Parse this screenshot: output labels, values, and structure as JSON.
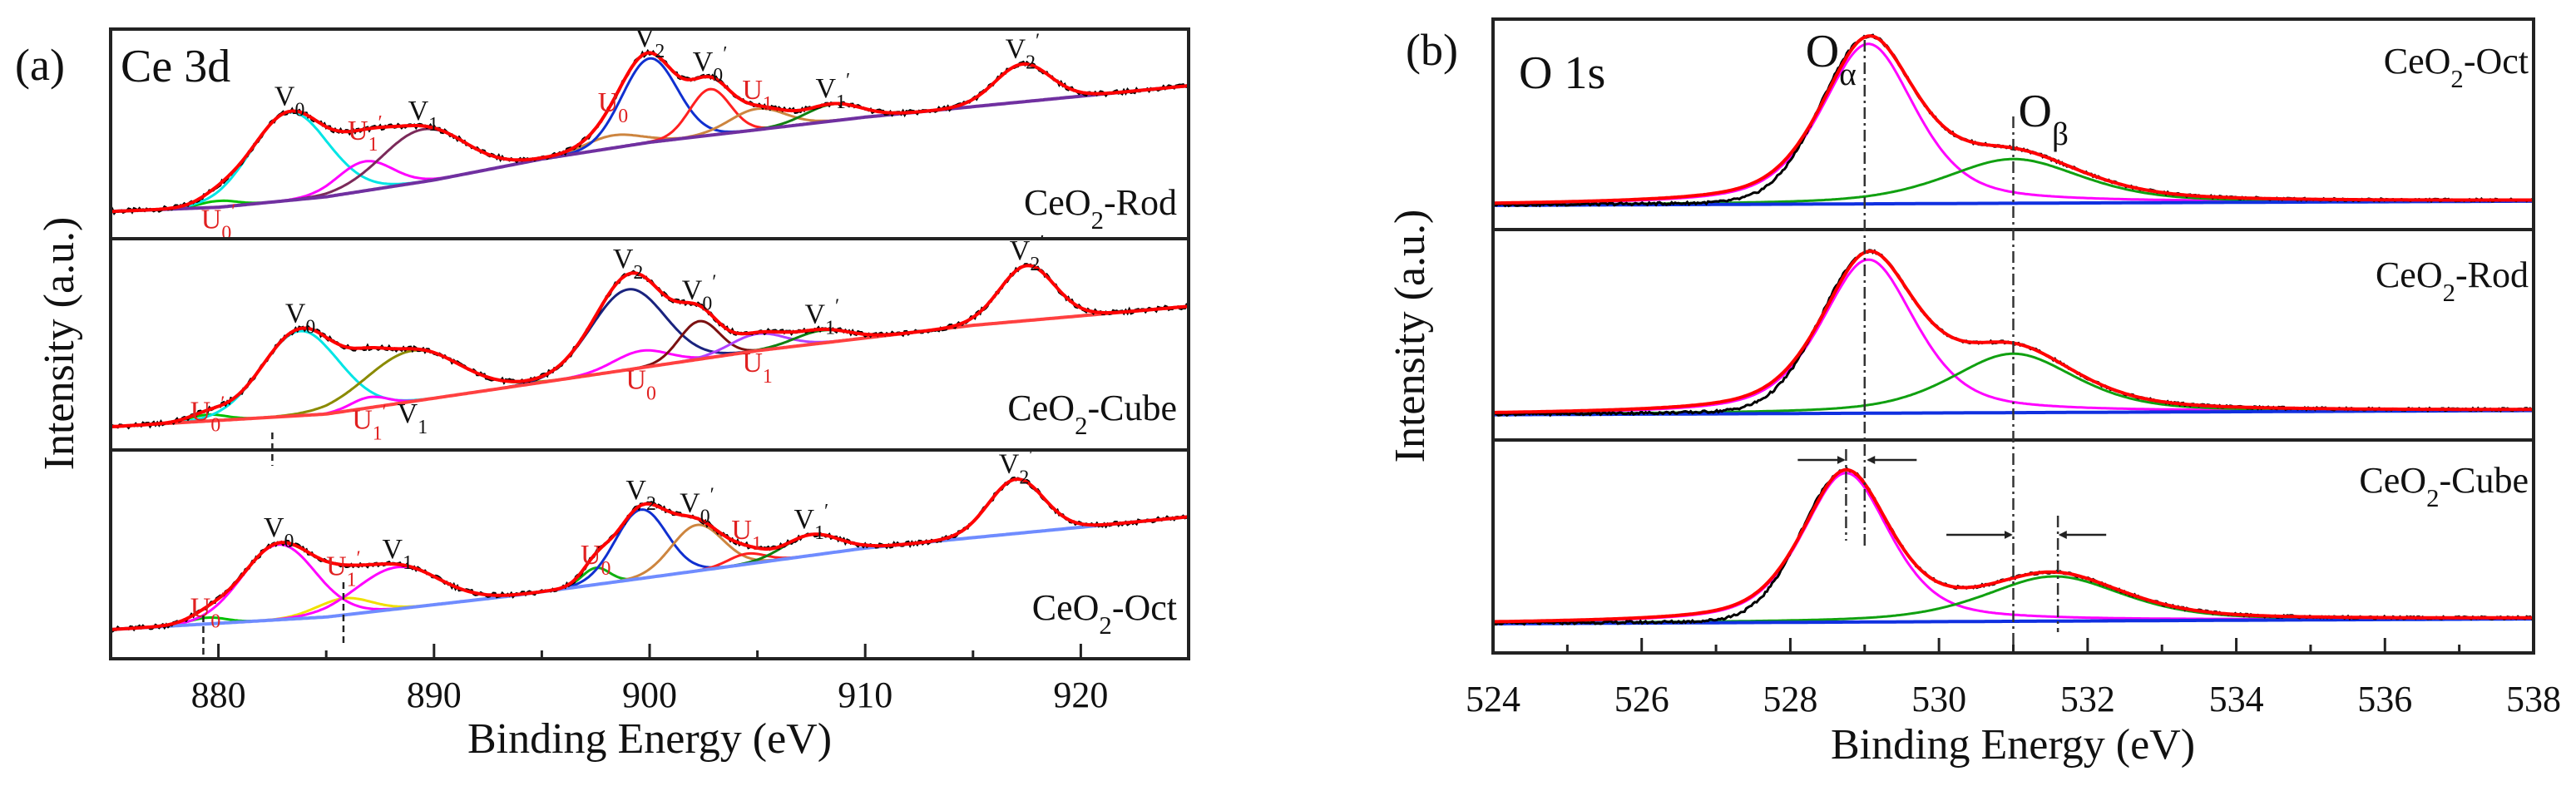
{
  "chart_data": [
    {
      "type": "line",
      "panel": "(a)",
      "title": "Ce 3d",
      "xlabel": "Binding Energy (eV)",
      "ylabel": "Intensity (a.u.)",
      "xlim": [
        875,
        925
      ],
      "xticks": [
        880,
        890,
        900,
        910,
        920
      ],
      "minor_tick_step": 5,
      "envelope_color": "#ff0000",
      "experimental_color": "#000000",
      "subplots": [
        {
          "sample": {
            "pre": "CeO",
            "sub": "2",
            "post": "-Rod"
          },
          "baseline_color": "#7030a0",
          "baseline": [
            [
              875,
              0.13
            ],
            [
              880,
              0.15
            ],
            [
              885,
              0.2
            ],
            [
              890,
              0.28
            ],
            [
              895,
              0.38
            ],
            [
              900,
              0.46
            ],
            [
              910,
              0.58
            ],
            [
              925,
              0.73
            ]
          ],
          "components": [
            {
              "t": "U",
              "sub": "0",
              "prime": true,
              "center": 880.0,
              "height": 0.03,
              "fwhm": 2.0,
              "color": "#00c000",
              "label_color": "#e02020",
              "pos": "below"
            },
            {
              "t": "V",
              "sub": "0",
              "prime": false,
              "center": 883.3,
              "height": 0.42,
              "fwhm": 4.2,
              "color": "#00e5e5",
              "label_color": "#111111",
              "pos": "above"
            },
            {
              "t": "U",
              "sub": "1",
              "prime": true,
              "center": 886.8,
              "height": 0.14,
              "fwhm": 3.0,
              "color": "#ff00ff",
              "label_color": "#e02020",
              "pos": "on"
            },
            {
              "t": "V",
              "sub": "1",
              "prime": false,
              "center": 889.5,
              "height": 0.25,
              "fwhm": 4.5,
              "color": "#7b2a5a",
              "label_color": "#111111",
              "pos": "above"
            },
            {
              "t": "U",
              "sub": "0",
              "prime": false,
              "center": 898.3,
              "height": 0.06,
              "fwhm": 3.0,
              "color": "#cd853f",
              "label_color": "#e02020",
              "pos": "on"
            },
            {
              "t": "V",
              "sub": "2",
              "prime": false,
              "center": 900.0,
              "height": 0.4,
              "fwhm": 3.0,
              "color": "#1030d0",
              "label_color": "#111111",
              "pos": "above"
            },
            {
              "t": "V",
              "sub": "0",
              "prime": true,
              "center": 902.8,
              "height": 0.22,
              "fwhm": 2.2,
              "color": "#ff2020",
              "label_color": "#111111",
              "pos": "above"
            },
            {
              "t": "U",
              "sub": "1",
              "prime": false,
              "center": 905.0,
              "height": 0.1,
              "fwhm": 3.0,
              "color": "#cd853f",
              "label_color": "#e02020",
              "pos": "above"
            },
            {
              "t": "V",
              "sub": "1",
              "prime": true,
              "center": 908.5,
              "height": 0.08,
              "fwhm": 3.0,
              "color": "#108010",
              "label_color": "#111111",
              "pos": "above"
            },
            {
              "t": "V",
              "sub": "2",
              "prime": true,
              "center": 917.3,
              "height": 0.18,
              "fwhm": 3.0,
              "color": "#ff2020",
              "label_color": "#111111",
              "pos": "above"
            }
          ]
        },
        {
          "sample": {
            "pre": "CeO",
            "sub": "2",
            "post": "-Cube"
          },
          "baseline_color": "#ff4040",
          "baseline": [
            [
              875,
              0.11
            ],
            [
              885,
              0.17
            ],
            [
              895,
              0.32
            ],
            [
              905,
              0.47
            ],
            [
              915,
              0.59
            ],
            [
              925,
              0.68
            ]
          ],
          "components": [
            {
              "t": "U",
              "sub": "0",
              "prime": true,
              "center": 879.5,
              "height": 0.03,
              "fwhm": 2.0,
              "color": "#00c000",
              "label_color": "#e02020",
              "pos": "on"
            },
            {
              "t": "V",
              "sub": "0",
              "prime": false,
              "center": 883.8,
              "height": 0.4,
              "fwhm": 4.2,
              "color": "#00e5e5",
              "label_color": "#111111",
              "pos": "above"
            },
            {
              "t": "U",
              "sub": "1",
              "prime": true,
              "center": 887.0,
              "height": 0.05,
              "fwhm": 2.0,
              "color": "#ff00ff",
              "label_color": "#e02020",
              "pos": "below"
            },
            {
              "t": "V",
              "sub": "1",
              "prime": false,
              "center": 889.0,
              "height": 0.24,
              "fwhm": 5.0,
              "color": "#8a8a00",
              "label_color": "#111111",
              "pos": "below"
            },
            {
              "t": "U",
              "sub": "0",
              "prime": false,
              "center": 899.6,
              "height": 0.08,
              "fwhm": 3.0,
              "color": "#ff00ff",
              "label_color": "#e02020",
              "pos": "below"
            },
            {
              "t": "V",
              "sub": "2",
              "prime": false,
              "center": 899.0,
              "height": 0.38,
              "fwhm": 4.0,
              "color": "#1a237e",
              "label_color": "#111111",
              "pos": "above"
            },
            {
              "t": "V",
              "sub": "0",
              "prime": true,
              "center": 902.3,
              "height": 0.18,
              "fwhm": 2.2,
              "color": "#7b1010",
              "label_color": "#111111",
              "pos": "above"
            },
            {
              "t": "U",
              "sub": "1",
              "prime": false,
              "center": 905.0,
              "height": 0.08,
              "fwhm": 3.0,
              "color": "#b040ff",
              "label_color": "#e02020",
              "pos": "below"
            },
            {
              "t": "V",
              "sub": "1",
              "prime": true,
              "center": 908.0,
              "height": 0.06,
              "fwhm": 3.0,
              "color": "#108010",
              "label_color": "#111111",
              "pos": "above"
            },
            {
              "t": "V",
              "sub": "2",
              "prime": true,
              "center": 917.5,
              "height": 0.26,
              "fwhm": 3.0,
              "color": "#ff2020",
              "label_color": "#111111",
              "pos": "above"
            }
          ]
        },
        {
          "sample": {
            "pre": "CeO",
            "sub": "2",
            "post": "-Oct"
          },
          "baseline_color": "#6f8cff",
          "baseline": [
            [
              875,
              0.14
            ],
            [
              885,
              0.2
            ],
            [
              893.5,
              0.3
            ],
            [
              900,
              0.39
            ],
            [
              910,
              0.53
            ],
            [
              925,
              0.68
            ]
          ],
          "components": [
            {
              "t": "U",
              "sub": "0",
              "prime": true,
              "center": 879.5,
              "height": 0.03,
              "fwhm": 2.0,
              "color": "#00c000",
              "label_color": "#e02020",
              "pos": "on"
            },
            {
              "t": "V",
              "sub": "0",
              "prime": false,
              "center": 882.8,
              "height": 0.36,
              "fwhm": 4.0,
              "color": "#ff00ff",
              "label_color": "#111111",
              "pos": "above"
            },
            {
              "t": "U",
              "sub": "1",
              "prime": true,
              "center": 885.8,
              "height": 0.08,
              "fwhm": 3.0,
              "color": "#f0e000",
              "label_color": "#e02020",
              "pos": "on"
            },
            {
              "t": "V",
              "sub": "1",
              "prime": false,
              "center": 888.3,
              "height": 0.2,
              "fwhm": 4.5,
              "color": "#ff00ff",
              "label_color": "#111111",
              "pos": "above"
            },
            {
              "t": "U",
              "sub": "0",
              "prime": false,
              "center": 897.5,
              "height": 0.08,
              "fwhm": 1.5,
              "color": "#10b010",
              "label_color": "#e02020",
              "pos": "on"
            },
            {
              "t": "V",
              "sub": "2",
              "prime": false,
              "center": 899.6,
              "height": 0.33,
              "fwhm": 2.8,
              "color": "#1030d0",
              "label_color": "#111111",
              "pos": "above"
            },
            {
              "t": "V",
              "sub": "0",
              "prime": true,
              "center": 902.2,
              "height": 0.22,
              "fwhm": 2.8,
              "color": "#cd853f",
              "label_color": "#111111",
              "pos": "above"
            },
            {
              "t": "U",
              "sub": "1",
              "prime": false,
              "center": 904.5,
              "height": 0.05,
              "fwhm": 2.0,
              "color": "#ff2020",
              "label_color": "#e02020",
              "pos": "above"
            },
            {
              "t": "V",
              "sub": "1",
              "prime": true,
              "center": 907.5,
              "height": 0.1,
              "fwhm": 3.0,
              "color": "#108010",
              "label_color": "#111111",
              "pos": "above"
            },
            {
              "t": "V",
              "sub": "2",
              "prime": true,
              "center": 917.0,
              "height": 0.26,
              "fwhm": 3.0,
              "color": "#ff2020",
              "label_color": "#111111",
              "pos": "above"
            }
          ]
        }
      ]
    },
    {
      "type": "line",
      "panel": "(b)",
      "title": "O 1s",
      "xlabel": "Binding Energy (eV)",
      "ylabel": "Intensity (a.u.)",
      "xlim": [
        524,
        538
      ],
      "xticks": [
        524,
        526,
        528,
        530,
        532,
        534,
        536,
        538
      ],
      "minor_tick_step": 1,
      "envelope_color": "#ff0000",
      "experimental_color": "#000000",
      "peak_names": [
        {
          "t": "O",
          "sub": "α",
          "x": 529.0
        },
        {
          "t": "O",
          "sub": "β",
          "x": 531.0
        }
      ],
      "reference_lines_eV": [
        529.0,
        531.0
      ],
      "shifted_lines_eV": [
        528.75,
        531.6
      ],
      "subplots": [
        {
          "sample": {
            "pre": "CeO",
            "sub": "2",
            "post": "-Oct"
          },
          "baseline_color": "#1030e0",
          "baseline": [
            [
              524,
              0.115
            ],
            [
              538,
              0.135
            ]
          ],
          "components": [
            {
              "name": "O_alpha",
              "center": 529.05,
              "height": 0.76,
              "fwhm": 1.5,
              "color": "#ff00ff"
            },
            {
              "name": "O_beta",
              "center": 531.0,
              "height": 0.21,
              "fwhm": 2.2,
              "color": "#10a010"
            }
          ]
        },
        {
          "sample": {
            "pre": "CeO",
            "sub": "2",
            "post": "-Rod"
          },
          "baseline_color": "#1030e0",
          "baseline": [
            [
              524,
              0.12
            ],
            [
              538,
              0.14
            ]
          ],
          "components": [
            {
              "name": "O_alpha",
              "center": 529.05,
              "height": 0.73,
              "fwhm": 1.5,
              "color": "#ff00ff"
            },
            {
              "name": "O_beta",
              "center": 531.0,
              "height": 0.28,
              "fwhm": 2.0,
              "color": "#10a010"
            }
          ]
        },
        {
          "sample": {
            "pre": "CeO",
            "sub": "2",
            "post": "-Cube"
          },
          "baseline_color": "#1030e0",
          "baseline": [
            [
              524,
              0.137
            ],
            [
              538,
              0.16
            ]
          ],
          "components": [
            {
              "name": "O_alpha",
              "center": 528.75,
              "height": 0.7,
              "fwhm": 1.4,
              "color": "#ff00ff"
            },
            {
              "name": "O_beta",
              "center": 531.55,
              "height": 0.21,
              "fwhm": 2.2,
              "color": "#10a010"
            }
          ]
        }
      ]
    }
  ]
}
